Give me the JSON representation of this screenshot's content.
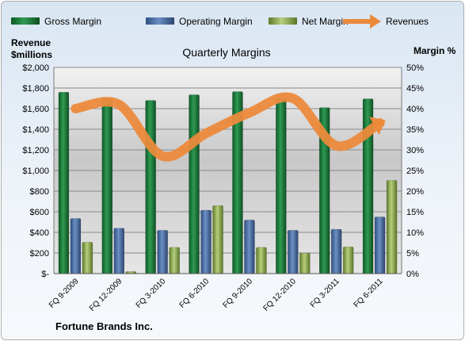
{
  "chart_data": {
    "type": "bar",
    "title": "Quarterly Margins",
    "left_axis_title_line1": "Revenue",
    "left_axis_title_line2": "$millions",
    "right_axis_title": "Margin %",
    "footer": "Fortune Brands Inc.",
    "categories": [
      "FQ 9-2009",
      "FQ 12-2009",
      "FQ 3-2010",
      "FQ 6-2010",
      "FQ 9-2010",
      "FQ 12-2010",
      "FQ 3-2011",
      "FQ 6-2011"
    ],
    "left_axis": {
      "min": 0,
      "max": 2000,
      "step": 200,
      "tick_labels": [
        "$-",
        "$200",
        "$400",
        "$600",
        "$800",
        "$1,000",
        "$1,200",
        "$1,400",
        "$1,600",
        "$1,800",
        "$2,000"
      ]
    },
    "right_axis": {
      "min": 0,
      "max": 50,
      "step": 5,
      "tick_labels": [
        "0%",
        "5%",
        "10%",
        "15%",
        "20%",
        "25%",
        "30%",
        "35%",
        "40%",
        "45%",
        "50%"
      ]
    },
    "series": [
      {
        "name": "Gross Margin",
        "axis": "left",
        "kind": "bar",
        "color": "#1f7a3a",
        "values": [
          1760,
          1700,
          1680,
          1735,
          1765,
          1700,
          1610,
          1695
        ]
      },
      {
        "name": "Operating Margin",
        "axis": "left",
        "kind": "bar",
        "color": "#4a6fa5",
        "values": [
          535,
          440,
          420,
          615,
          520,
          420,
          430,
          550
        ]
      },
      {
        "name": "Net Margin",
        "axis": "left",
        "kind": "bar",
        "color": "#92b05a",
        "values": [
          305,
          20,
          255,
          660,
          255,
          200,
          260,
          905
        ]
      },
      {
        "name": "Revenues",
        "axis": "right",
        "kind": "line",
        "color": "#ec8a3c",
        "values": [
          40,
          41,
          28.5,
          34,
          39,
          42.5,
          31,
          36.5
        ]
      }
    ],
    "legend_position": "top",
    "grid": true
  }
}
